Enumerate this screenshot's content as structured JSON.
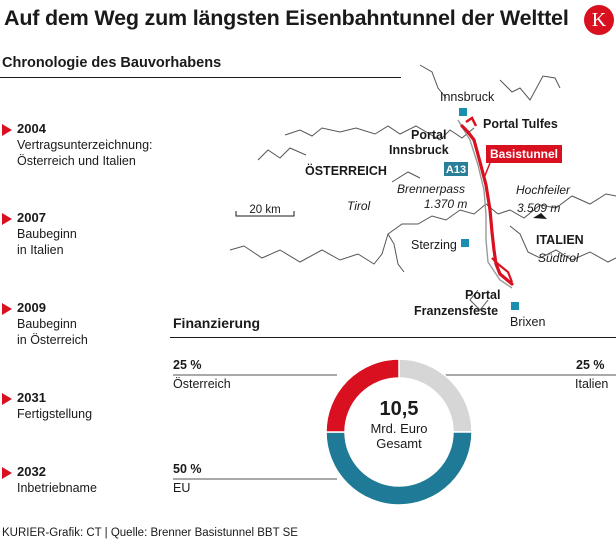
{
  "header": {
    "title": "Auf dem Weg zum längsten Eisenbahntunnel der Welttel",
    "subtitle": "Chronologie des Bauvorhabens",
    "logo_letter": "K"
  },
  "timeline": [
    {
      "year": "2004",
      "lines": [
        "Vertragsunterzeichnung:",
        "Österreich und Italien"
      ]
    },
    {
      "year": "2007",
      "lines": [
        "Baubeginn",
        "in Italien"
      ]
    },
    {
      "year": "2009",
      "lines": [
        "Baubeginn",
        "in Österreich"
      ]
    },
    {
      "year": "2031",
      "lines": [
        "Fertigstellung"
      ]
    },
    {
      "year": "2032",
      "lines": [
        "Inbetriebname"
      ]
    }
  ],
  "map": {
    "cities": {
      "innsbruck": "Innsbruck",
      "sterzing": "Sterzing",
      "brixen": "Brixen"
    },
    "portals": {
      "tulfes": "Portal Tulfes",
      "innsbruck_l1": "Portal",
      "innsbruck_l2": "Innsbruck",
      "franzensfeste_l1": "Portal",
      "franzensfeste_l2": "Franzensfeste"
    },
    "countries": {
      "austria": "ÖSTERREICH",
      "italy": "ITALIEN"
    },
    "regions": {
      "tirol": "Tirol",
      "suedtirol": "Südtirol"
    },
    "passes": {
      "brenner_name": "Brennerpass",
      "brenner_height": "1.370 m",
      "hochfeiler_name": "Hochfeiler",
      "hochfeiler_height": "3.509 m"
    },
    "highway": "A13",
    "tunnel_label": "Basistunnel",
    "scale": "20 km",
    "colors": {
      "tunnel": "#d9101f",
      "highway": "#2a7f98",
      "city": "#1a8fb0"
    }
  },
  "chart_data": {
    "type": "pie",
    "title": "Finanzierung",
    "center_value": "10,5",
    "center_unit_l1": "Mrd. Euro",
    "center_unit_l2": "Gesamt",
    "slices": [
      {
        "label": "Österreich",
        "value": 25,
        "pct_label": "25 %",
        "color": "#d9101f"
      },
      {
        "label": "Italien",
        "value": 25,
        "pct_label": "25 %",
        "color": "#d6d6d6"
      },
      {
        "label": "EU",
        "value": 50,
        "pct_label": "50 %",
        "color": "#1e7a96"
      }
    ]
  },
  "footer": "KURIER-Grafik: CT | Quelle: Brenner Basistunnel BBT SE"
}
